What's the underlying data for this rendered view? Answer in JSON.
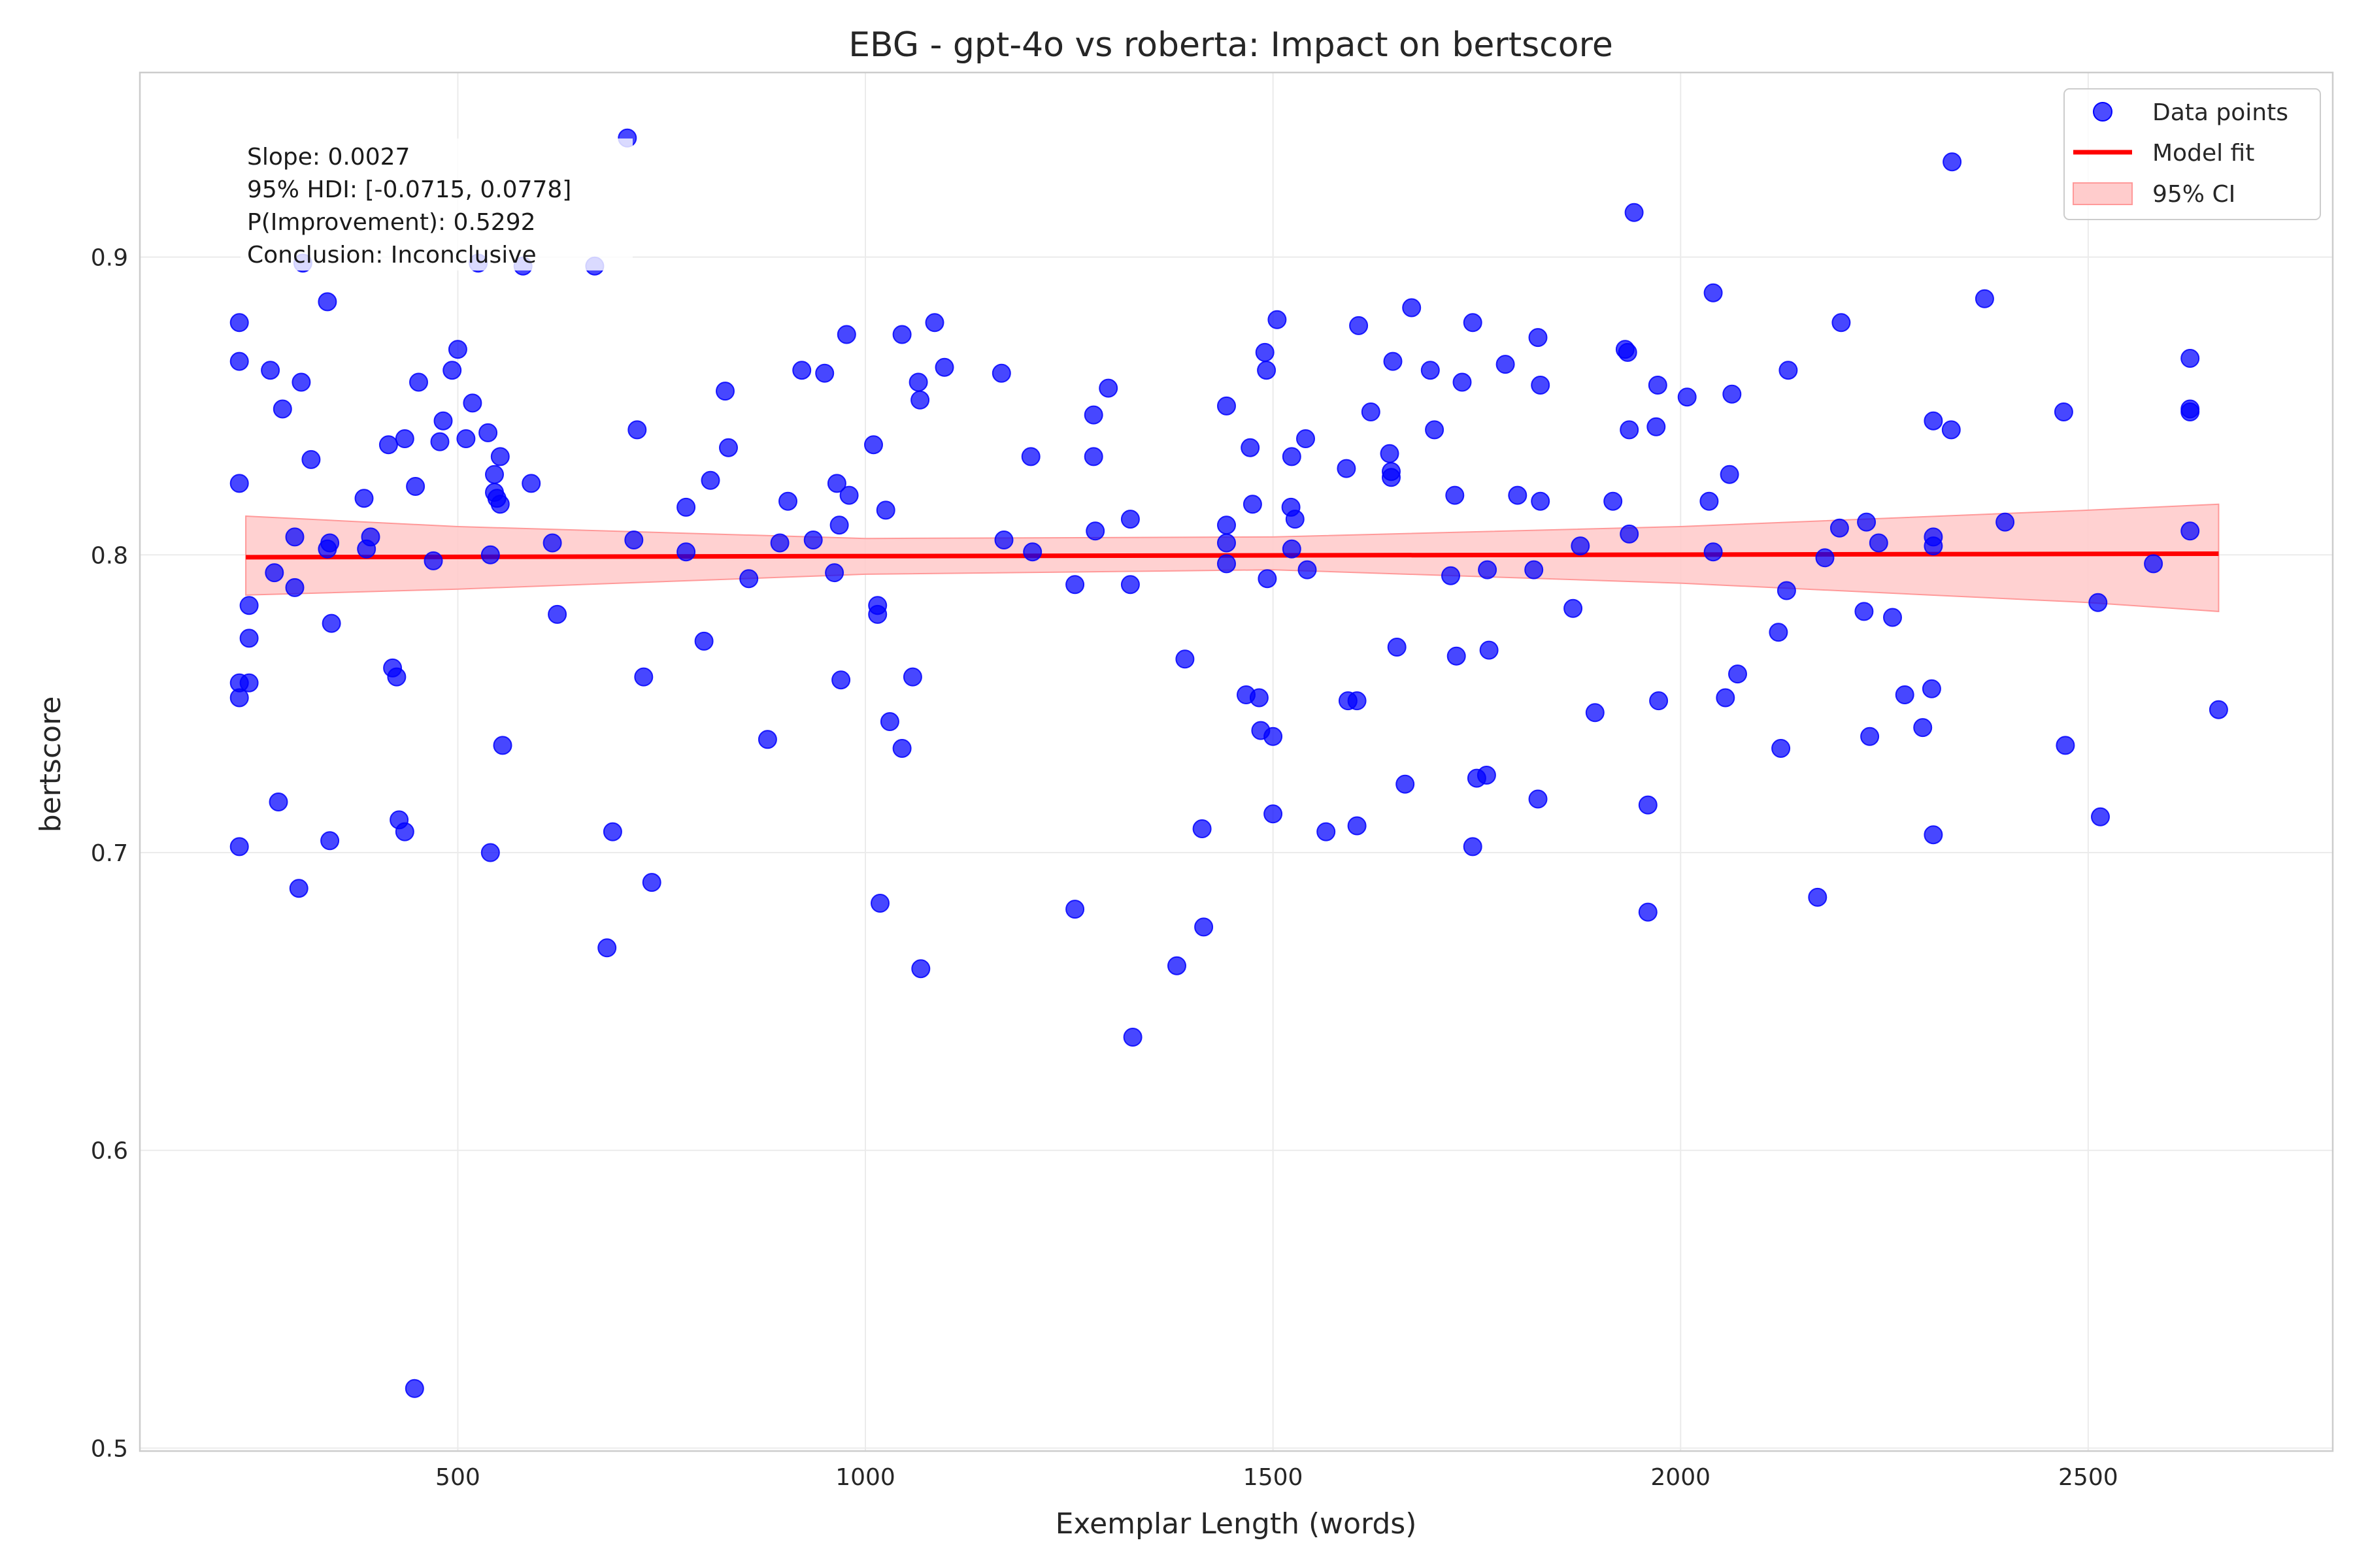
{
  "chart_data": {
    "type": "scatter",
    "title": "EBG - gpt-4o vs roberta: Impact on bertscore",
    "xlabel": "Exemplar Length (words)",
    "ylabel": "bertscore",
    "xlim": [
      110,
      2800
    ],
    "ylim": [
      0.499,
      0.962
    ],
    "xticks": [
      500,
      1000,
      1500,
      2000,
      2500
    ],
    "yticks": [
      0.5,
      0.6,
      0.7,
      0.8,
      0.9
    ],
    "ytick_labels": [
      "0.5",
      "0.6",
      "0.7",
      "0.8",
      "0.9"
    ],
    "grid": true,
    "legend": {
      "position": "top-right",
      "entries": [
        "Data points",
        "Model fit",
        "95% CI"
      ]
    },
    "annotation": [
      "Slope: 0.0027",
      "95% HDI: [-0.0715, 0.0778]",
      "P(Improvement): 0.5292",
      "Conclusion: Inconclusive"
    ],
    "colors": {
      "points": "#0000ff",
      "fit_line": "#ff0000",
      "ci_fill": "#ffcccc",
      "ci_edge": "#ff9999"
    },
    "fit": {
      "x": [
        240,
        2660
      ],
      "y": [
        0.7992,
        0.8004
      ]
    },
    "ci": {
      "x": [
        240,
        500,
        1000,
        1500,
        2000,
        2500,
        2660
      ],
      "lower": [
        0.7865,
        0.7885,
        0.7935,
        0.795,
        0.7905,
        0.784,
        0.781
      ],
      "upper": [
        0.813,
        0.8095,
        0.8055,
        0.806,
        0.8095,
        0.815,
        0.817
      ]
    },
    "series": [
      {
        "name": "Data points",
        "points": [
          [
            232,
            0.878
          ],
          [
            232,
            0.865
          ],
          [
            232,
            0.824
          ],
          [
            232,
            0.757
          ],
          [
            232,
            0.752
          ],
          [
            232,
            0.702
          ],
          [
            244,
            0.783
          ],
          [
            244,
            0.772
          ],
          [
            244,
            0.757
          ],
          [
            270,
            0.862
          ],
          [
            275,
            0.794
          ],
          [
            280,
            0.717
          ],
          [
            285,
            0.849
          ],
          [
            300,
            0.806
          ],
          [
            300,
            0.789
          ],
          [
            305,
            0.688
          ],
          [
            308,
            0.858
          ],
          [
            310,
            0.898
          ],
          [
            320,
            0.832
          ],
          [
            340,
            0.885
          ],
          [
            340,
            0.802
          ],
          [
            343,
            0.804
          ],
          [
            343,
            0.704
          ],
          [
            345,
            0.777
          ],
          [
            385,
            0.819
          ],
          [
            388,
            0.802
          ],
          [
            393,
            0.806
          ],
          [
            415,
            0.837
          ],
          [
            420,
            0.762
          ],
          [
            425,
            0.759
          ],
          [
            428,
            0.711
          ],
          [
            435,
            0.839
          ],
          [
            435,
            0.707
          ],
          [
            448,
            0.823
          ],
          [
            452,
            0.858
          ],
          [
            447,
            0.52
          ],
          [
            470,
            0.798
          ],
          [
            478,
            0.838
          ],
          [
            482,
            0.845
          ],
          [
            493,
            0.862
          ],
          [
            500,
            0.869
          ],
          [
            510,
            0.839
          ],
          [
            518,
            0.851
          ],
          [
            525,
            0.898
          ],
          [
            537,
            0.841
          ],
          [
            540,
            0.8
          ],
          [
            540,
            0.7
          ],
          [
            545,
            0.827
          ],
          [
            545,
            0.821
          ],
          [
            548,
            0.819
          ],
          [
            552,
            0.817
          ],
          [
            552,
            0.833
          ],
          [
            555,
            0.736
          ],
          [
            580,
            0.897
          ],
          [
            590,
            0.824
          ],
          [
            616,
            0.804
          ],
          [
            622,
            0.78
          ],
          [
            668,
            0.897
          ],
          [
            683,
            0.668
          ],
          [
            690,
            0.707
          ],
          [
            708,
            0.94
          ],
          [
            716,
            0.805
          ],
          [
            720,
            0.842
          ],
          [
            728,
            0.759
          ],
          [
            738,
            0.69
          ],
          [
            780,
            0.816
          ],
          [
            780,
            0.801
          ],
          [
            802,
            0.771
          ],
          [
            810,
            0.825
          ],
          [
            828,
            0.855
          ],
          [
            832,
            0.836
          ],
          [
            857,
            0.792
          ],
          [
            880,
            0.738
          ],
          [
            895,
            0.804
          ],
          [
            905,
            0.818
          ],
          [
            922,
            0.862
          ],
          [
            936,
            0.805
          ],
          [
            950,
            0.861
          ],
          [
            962,
            0.794
          ],
          [
            965,
            0.824
          ],
          [
            968,
            0.81
          ],
          [
            970,
            0.758
          ],
          [
            977,
            0.874
          ],
          [
            980,
            0.82
          ],
          [
            1010,
            0.837
          ],
          [
            1015,
            0.783
          ],
          [
            1015,
            0.78
          ],
          [
            1018,
            0.683
          ],
          [
            1025,
            0.815
          ],
          [
            1030,
            0.744
          ],
          [
            1045,
            0.735
          ],
          [
            1045,
            0.874
          ],
          [
            1058,
            0.759
          ],
          [
            1065,
            0.858
          ],
          [
            1067,
            0.852
          ],
          [
            1068,
            0.661
          ],
          [
            1085,
            0.878
          ],
          [
            1097,
            0.863
          ],
          [
            1167,
            0.861
          ],
          [
            1170,
            0.805
          ],
          [
            1203,
            0.833
          ],
          [
            1205,
            0.801
          ],
          [
            1257,
            0.79
          ],
          [
            1257,
            0.681
          ],
          [
            1280,
            0.833
          ],
          [
            1280,
            0.847
          ],
          [
            1282,
            0.808
          ],
          [
            1298,
            0.856
          ],
          [
            1325,
            0.812
          ],
          [
            1325,
            0.79
          ],
          [
            1328,
            0.638
          ],
          [
            1382,
            0.662
          ],
          [
            1392,
            0.765
          ],
          [
            1413,
            0.708
          ],
          [
            1415,
            0.675
          ],
          [
            1443,
            0.85
          ],
          [
            1443,
            0.81
          ],
          [
            1443,
            0.804
          ],
          [
            1443,
            0.797
          ],
          [
            1467,
            0.753
          ],
          [
            1472,
            0.836
          ],
          [
            1475,
            0.817
          ],
          [
            1483,
            0.752
          ],
          [
            1485,
            0.741
          ],
          [
            1490,
            0.868
          ],
          [
            1492,
            0.862
          ],
          [
            1493,
            0.792
          ],
          [
            1500,
            0.739
          ],
          [
            1500,
            0.713
          ],
          [
            1505,
            0.879
          ],
          [
            1522,
            0.816
          ],
          [
            1523,
            0.833
          ],
          [
            1523,
            0.802
          ],
          [
            1527,
            0.812
          ],
          [
            1540,
            0.839
          ],
          [
            1542,
            0.795
          ],
          [
            1565,
            0.707
          ],
          [
            1590,
            0.829
          ],
          [
            1592,
            0.751
          ],
          [
            1603,
            0.751
          ],
          [
            1603,
            0.709
          ],
          [
            1605,
            0.877
          ],
          [
            1620,
            0.848
          ],
          [
            1643,
            0.834
          ],
          [
            1645,
            0.828
          ],
          [
            1645,
            0.826
          ],
          [
            1647,
            0.865
          ],
          [
            1652,
            0.769
          ],
          [
            1662,
            0.723
          ],
          [
            1670,
            0.883
          ],
          [
            1693,
            0.862
          ],
          [
            1698,
            0.842
          ],
          [
            1718,
            0.793
          ],
          [
            1723,
            0.82
          ],
          [
            1725,
            0.766
          ],
          [
            1732,
            0.858
          ],
          [
            1745,
            0.878
          ],
          [
            1745,
            0.702
          ],
          [
            1750,
            0.725
          ],
          [
            1762,
            0.726
          ],
          [
            1763,
            0.795
          ],
          [
            1765,
            0.768
          ],
          [
            1785,
            0.864
          ],
          [
            1800,
            0.82
          ],
          [
            1820,
            0.795
          ],
          [
            1825,
            0.873
          ],
          [
            1825,
            0.718
          ],
          [
            1828,
            0.818
          ],
          [
            1828,
            0.857
          ],
          [
            1868,
            0.782
          ],
          [
            1877,
            0.803
          ],
          [
            1895,
            0.747
          ],
          [
            1917,
            0.818
          ],
          [
            1932,
            0.869
          ],
          [
            1935,
            0.868
          ],
          [
            1937,
            0.807
          ],
          [
            1937,
            0.842
          ],
          [
            1943,
            0.915
          ],
          [
            1960,
            0.716
          ],
          [
            1960,
            0.68
          ],
          [
            1970,
            0.843
          ],
          [
            1972,
            0.857
          ],
          [
            1973,
            0.751
          ],
          [
            2008,
            0.853
          ],
          [
            2035,
            0.818
          ],
          [
            2040,
            0.888
          ],
          [
            2040,
            0.801
          ],
          [
            2055,
            0.752
          ],
          [
            2060,
            0.827
          ],
          [
            2063,
            0.854
          ],
          [
            2070,
            0.76
          ],
          [
            2120,
            0.774
          ],
          [
            2123,
            0.735
          ],
          [
            2130,
            0.788
          ],
          [
            2132,
            0.862
          ],
          [
            2168,
            0.685
          ],
          [
            2177,
            0.799
          ],
          [
            2195,
            0.809
          ],
          [
            2197,
            0.878
          ],
          [
            2225,
            0.781
          ],
          [
            2228,
            0.811
          ],
          [
            2232,
            0.739
          ],
          [
            2243,
            0.804
          ],
          [
            2260,
            0.779
          ],
          [
            2275,
            0.753
          ],
          [
            2297,
            0.742
          ],
          [
            2308,
            0.755
          ],
          [
            2310,
            0.706
          ],
          [
            2310,
            0.845
          ],
          [
            2310,
            0.806
          ],
          [
            2310,
            0.803
          ],
          [
            2332,
            0.842
          ],
          [
            2333,
            0.932
          ],
          [
            2373,
            0.886
          ],
          [
            2398,
            0.811
          ],
          [
            2470,
            0.848
          ],
          [
            2472,
            0.736
          ],
          [
            2512,
            0.784
          ],
          [
            2515,
            0.712
          ],
          [
            2580,
            0.797
          ],
          [
            2625,
            0.866
          ],
          [
            2625,
            0.849
          ],
          [
            2625,
            0.848
          ],
          [
            2625,
            0.808
          ],
          [
            2660,
            0.748
          ]
        ]
      }
    ]
  }
}
